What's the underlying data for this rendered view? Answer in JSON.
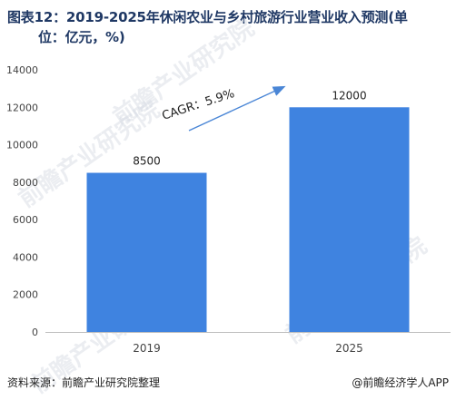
{
  "title": {
    "line1": "图表12：2019-2025年休闲农业与乡村旅游行业营业收入预测(单",
    "line2": "位：亿元，%)"
  },
  "watermark": "前瞻产业研究院",
  "annotation": "CAGR：5.9%",
  "footer": {
    "source": "资料来源：前瞻产业研究院整理",
    "brand": "@前瞻经济学人APP"
  },
  "colors": {
    "bar": "#3f83e0",
    "arrow": "#4a86d6",
    "axis_text": "#444444",
    "title": "#1f3864"
  },
  "chart_data": {
    "type": "bar",
    "categories": [
      "2019",
      "2025"
    ],
    "values": [
      8500,
      12000
    ],
    "data_labels": [
      "8500",
      "12000"
    ],
    "title": "图表12：2019-2025年休闲农业与乡村旅游行业营业收入预测(单位：亿元，%)",
    "xlabel": "",
    "ylabel": "",
    "ylim": [
      0,
      14000
    ],
    "yticks": [
      0,
      2000,
      4000,
      6000,
      8000,
      10000,
      12000,
      14000
    ],
    "grid": false,
    "legend": "none",
    "annotation": "CAGR：5.9%"
  }
}
